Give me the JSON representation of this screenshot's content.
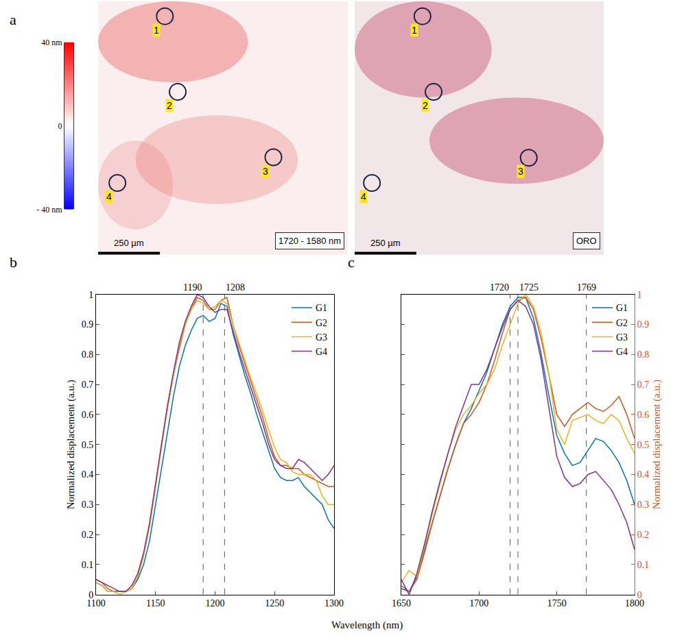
{
  "figure": {
    "xlabel": "Wavelength (nm)"
  },
  "panel_a": {
    "panel": "a",
    "colorbar": {
      "range": [
        -40,
        40
      ],
      "ticks": [
        {
          "value": 40,
          "label": "40 nm"
        },
        0,
        {
          "value": -40,
          "label": "- 40 nm"
        }
      ]
    },
    "images": [
      {
        "label": "1720 - 1580 nm",
        "xlim": [
          0,
          1010
        ],
        "ylim": [
          0,
          1035
        ],
        "scale_bar": {
          "value": 250,
          "label": "250 µm"
        },
        "regions": [
          {
            "name": "1",
            "x": 270,
            "y": 61
          },
          {
            "name": "2",
            "x": 322,
            "y": 370
          },
          {
            "name": "3",
            "x": 709,
            "y": 637
          },
          {
            "name": "4",
            "x": 78,
            "y": 742
          }
        ]
      },
      {
        "label": "ORO",
        "xlim": [
          0,
          1010
        ],
        "ylim": [
          0,
          1035
        ],
        "scale_bar": {
          "value": 250,
          "label": "250 µm"
        },
        "regions": [
          {
            "name": "1",
            "x": 275,
            "y": 61
          },
          {
            "name": "2",
            "x": 320,
            "y": 370
          },
          {
            "name": "3",
            "x": 706,
            "y": 639
          },
          {
            "name": "4",
            "x": 70,
            "y": 742
          }
        ]
      }
    ]
  },
  "chart_data": [
    {
      "panel": "b",
      "type": "line",
      "x": [
        1100,
        1105,
        1110,
        1115,
        1120,
        1125,
        1130,
        1135,
        1140,
        1145,
        1150,
        1155,
        1160,
        1165,
        1170,
        1175,
        1180,
        1185,
        1190,
        1195,
        1200,
        1205,
        1210,
        1215,
        1220,
        1225,
        1230,
        1235,
        1240,
        1245,
        1250,
        1255,
        1260,
        1265,
        1270,
        1275,
        1280,
        1285,
        1290,
        1295,
        1300
      ],
      "series": [
        {
          "name": "G1",
          "color": "#0072BD",
          "values": [
            0.04,
            0.03,
            0.01,
            0.01,
            0.01,
            0.01,
            0.02,
            0.05,
            0.1,
            0.18,
            0.3,
            0.42,
            0.55,
            0.66,
            0.76,
            0.83,
            0.88,
            0.92,
            0.93,
            0.91,
            0.92,
            0.97,
            0.96,
            0.87,
            0.8,
            0.73,
            0.67,
            0.6,
            0.54,
            0.48,
            0.42,
            0.39,
            0.38,
            0.38,
            0.39,
            0.36,
            0.34,
            0.32,
            0.3,
            0.25,
            0.22
          ]
        },
        {
          "name": "G2",
          "color": "#D95319",
          "values": [
            0.05,
            0.04,
            0.02,
            0.01,
            0.01,
            0.01,
            0.02,
            0.06,
            0.13,
            0.23,
            0.36,
            0.5,
            0.62,
            0.73,
            0.82,
            0.9,
            0.95,
            0.99,
            0.98,
            0.95,
            0.95,
            0.98,
            0.99,
            0.9,
            0.83,
            0.77,
            0.71,
            0.65,
            0.59,
            0.52,
            0.46,
            0.43,
            0.43,
            0.42,
            0.42,
            0.4,
            0.39,
            0.38,
            0.37,
            0.36,
            0.36
          ]
        },
        {
          "name": "G3",
          "color": "#EDB120",
          "values": [
            0.04,
            0.03,
            0.01,
            0.01,
            0.0,
            0.01,
            0.02,
            0.06,
            0.13,
            0.23,
            0.36,
            0.5,
            0.62,
            0.73,
            0.83,
            0.9,
            0.95,
            0.98,
            0.97,
            0.95,
            0.96,
            0.98,
            0.97,
            0.9,
            0.84,
            0.78,
            0.72,
            0.67,
            0.61,
            0.55,
            0.49,
            0.45,
            0.44,
            0.41,
            0.4,
            0.4,
            0.4,
            0.38,
            0.33,
            0.3,
            0.3
          ]
        },
        {
          "name": "G4",
          "color": "#7E2F8E",
          "values": [
            0.05,
            0.04,
            0.03,
            0.02,
            0.01,
            0.01,
            0.03,
            0.07,
            0.14,
            0.24,
            0.37,
            0.51,
            0.63,
            0.74,
            0.84,
            0.91,
            0.96,
            1.0,
            0.99,
            0.96,
            0.94,
            0.95,
            0.95,
            0.88,
            0.81,
            0.75,
            0.69,
            0.63,
            0.57,
            0.5,
            0.45,
            0.43,
            0.42,
            0.42,
            0.45,
            0.44,
            0.42,
            0.4,
            0.38,
            0.4,
            0.43
          ]
        }
      ],
      "xlim": [
        1100,
        1300
      ],
      "xticks": [
        1100,
        1150,
        1200,
        1250,
        1300
      ],
      "ylim": [
        0,
        1
      ],
      "yticks": [
        0,
        0.1,
        0.2,
        0.3,
        0.4,
        0.5,
        0.6,
        0.7,
        0.8,
        0.9,
        1
      ],
      "ylabel": "Normalized displacement (a.u.)",
      "vlines": [
        1190,
        1208
      ],
      "legend": "top right",
      "grid": false
    },
    {
      "panel": "c",
      "type": "line",
      "x": [
        1650,
        1655,
        1660,
        1665,
        1670,
        1675,
        1680,
        1685,
        1690,
        1695,
        1700,
        1705,
        1710,
        1715,
        1720,
        1725,
        1730,
        1735,
        1740,
        1745,
        1750,
        1755,
        1760,
        1765,
        1770,
        1775,
        1780,
        1785,
        1790,
        1795,
        1800
      ],
      "series": [
        {
          "name": "G1",
          "color": "#0072BD",
          "axis": "y2",
          "values": [
            0.02,
            0.01,
            0.06,
            0.15,
            0.24,
            0.33,
            0.42,
            0.5,
            0.57,
            0.62,
            0.68,
            0.74,
            0.82,
            0.9,
            0.96,
            0.99,
            0.99,
            0.92,
            0.8,
            0.66,
            0.53,
            0.47,
            0.43,
            0.44,
            0.48,
            0.52,
            0.51,
            0.48,
            0.44,
            0.38,
            0.3
          ]
        },
        {
          "name": "G2",
          "color": "#D95319",
          "axis": "y2",
          "values": [
            0.03,
            0.01,
            0.05,
            0.14,
            0.24,
            0.33,
            0.42,
            0.5,
            0.57,
            0.6,
            0.64,
            0.7,
            0.78,
            0.87,
            0.95,
            0.98,
            0.99,
            0.95,
            0.85,
            0.73,
            0.6,
            0.56,
            0.6,
            0.62,
            0.64,
            0.62,
            0.61,
            0.63,
            0.66,
            0.6,
            0.52
          ]
        },
        {
          "name": "G3",
          "color": "#EDB120",
          "axis": "y2",
          "values": [
            0.04,
            0.08,
            0.06,
            0.16,
            0.27,
            0.37,
            0.47,
            0.55,
            0.6,
            0.63,
            0.67,
            0.7,
            0.75,
            0.83,
            0.9,
            0.97,
            1.0,
            0.96,
            0.87,
            0.73,
            0.55,
            0.5,
            0.58,
            0.59,
            0.6,
            0.58,
            0.57,
            0.6,
            0.58,
            0.52,
            0.47
          ]
        },
        {
          "name": "G4",
          "color": "#7E2F8E",
          "axis": "y2",
          "values": [
            0.05,
            0.0,
            0.07,
            0.17,
            0.28,
            0.38,
            0.47,
            0.56,
            0.63,
            0.7,
            0.7,
            0.75,
            0.82,
            0.89,
            0.95,
            0.98,
            0.96,
            0.9,
            0.78,
            0.62,
            0.46,
            0.39,
            0.36,
            0.37,
            0.4,
            0.41,
            0.38,
            0.35,
            0.3,
            0.24,
            0.15
          ]
        }
      ],
      "xlim": [
        1650,
        1800
      ],
      "xticks": [
        1650,
        1700,
        1750,
        1800
      ],
      "y2lim": [
        0,
        1
      ],
      "y2ticks": [
        0,
        0.1,
        0.2,
        0.3,
        0.4,
        0.5,
        0.6,
        0.7,
        0.8,
        0.9,
        1
      ],
      "y2label": "Normalized displacement (a.u.)",
      "vlines": [
        1720,
        1725,
        1769
      ],
      "legend": "top right",
      "grid": false
    }
  ]
}
